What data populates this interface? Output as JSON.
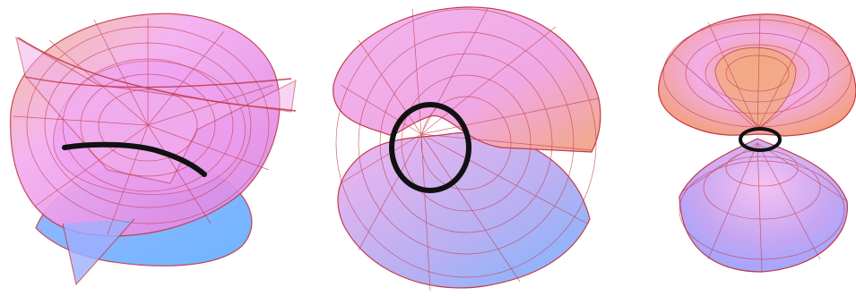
{
  "figure": {
    "panels": [
      {
        "id": "left",
        "surface": "saddle-ribbon-surface"
      },
      {
        "id": "middle",
        "surface": "helicoidal-sheet-surface"
      },
      {
        "id": "right",
        "surface": "catenoid-like-surface"
      }
    ]
  },
  "colors": {
    "pink": "#f5b8f0",
    "magenta": "#e58ae8",
    "orange": "#f6a878",
    "blue": "#7fb8ff",
    "violet": "#b79df0",
    "mesh": "#c23a4a",
    "curve": "#111111"
  }
}
